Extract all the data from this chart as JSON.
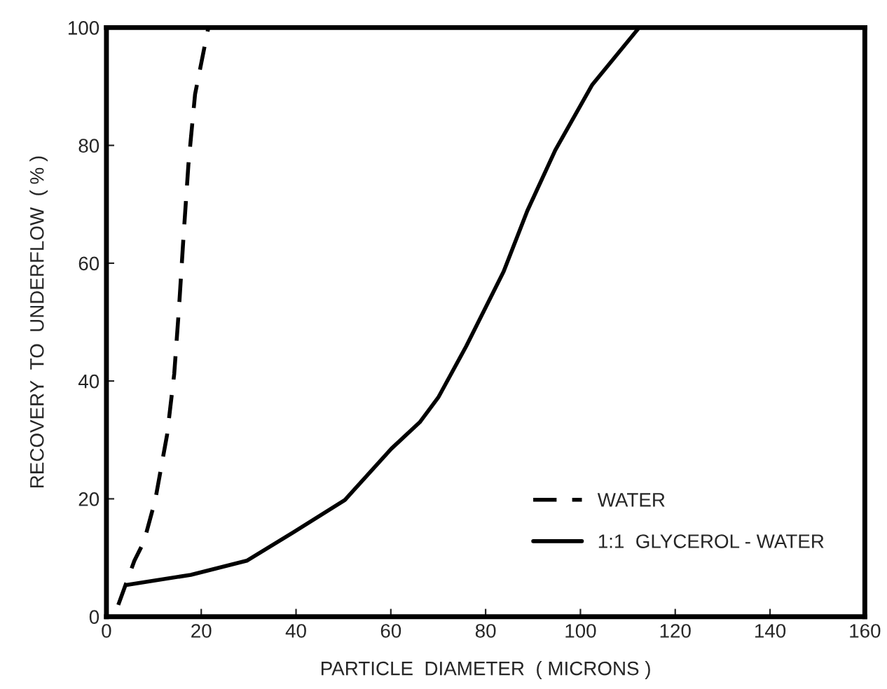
{
  "chart_data": {
    "type": "line",
    "xlabel": "PARTICLE  DIAMETER  ( MICRONS )",
    "ylabel": "RECOVERY  TO  UNDERFLOW  ( % )",
    "xlim": [
      0,
      160
    ],
    "ylim": [
      0,
      100
    ],
    "xticks": [
      0,
      20,
      40,
      60,
      80,
      100,
      120,
      140,
      160
    ],
    "yticks": [
      0,
      20,
      40,
      60,
      80,
      100
    ],
    "grid": false,
    "legend": "bottom right",
    "series": [
      {
        "name": "WATER",
        "color": "#000000",
        "line_style": "dashed",
        "x": [
          2.5,
          5.9,
          7.9,
          10.3,
          12.8,
          14.3,
          15.3,
          16.3,
          17.3,
          18.7,
          21.5
        ],
        "values": [
          2,
          9.5,
          12.7,
          19.8,
          30.9,
          41.2,
          52.3,
          65,
          76.8,
          88.7,
          100
        ]
      },
      {
        "name": "1:1  GLYCEROL - WATER",
        "color": "#000000",
        "line_style": "solid",
        "x": [
          4.4,
          17.8,
          29.6,
          39.4,
          50.3,
          60.1,
          66.1,
          70,
          75.9,
          83.8,
          88.8,
          94.7,
          102.5,
          112.4
        ],
        "values": [
          5.4,
          7.1,
          9.5,
          14.3,
          19.8,
          28.5,
          33,
          37.2,
          45.9,
          58.6,
          68.9,
          79.2,
          90.3,
          100
        ]
      }
    ]
  }
}
